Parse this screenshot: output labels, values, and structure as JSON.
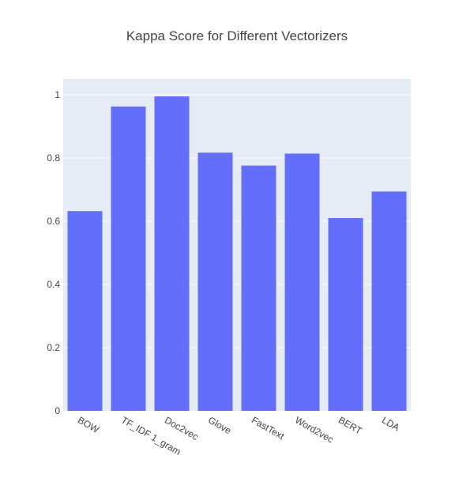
{
  "chart_data": {
    "type": "bar",
    "title": "Kappa Score for Different Vectorizers",
    "xlabel": "",
    "ylabel": "",
    "categories": [
      "BOW",
      "TF_IDF 1_gram",
      "Doc2vec",
      "Glove",
      "FastText",
      "Word2vec",
      "BERT",
      "LDA"
    ],
    "values": [
      0.632,
      0.963,
      0.995,
      0.817,
      0.776,
      0.814,
      0.61,
      0.694
    ],
    "ylim": [
      0,
      1.05
    ],
    "yticks": [
      0,
      0.2,
      0.4,
      0.6,
      0.8,
      1
    ],
    "ytick_labels": [
      "0",
      "0.2",
      "0.4",
      "0.6",
      "0.8",
      "1"
    ],
    "grid": true,
    "bar_color": "#636efa",
    "plot_background": "#e5ecf6",
    "tick_label_rotation": 30
  }
}
